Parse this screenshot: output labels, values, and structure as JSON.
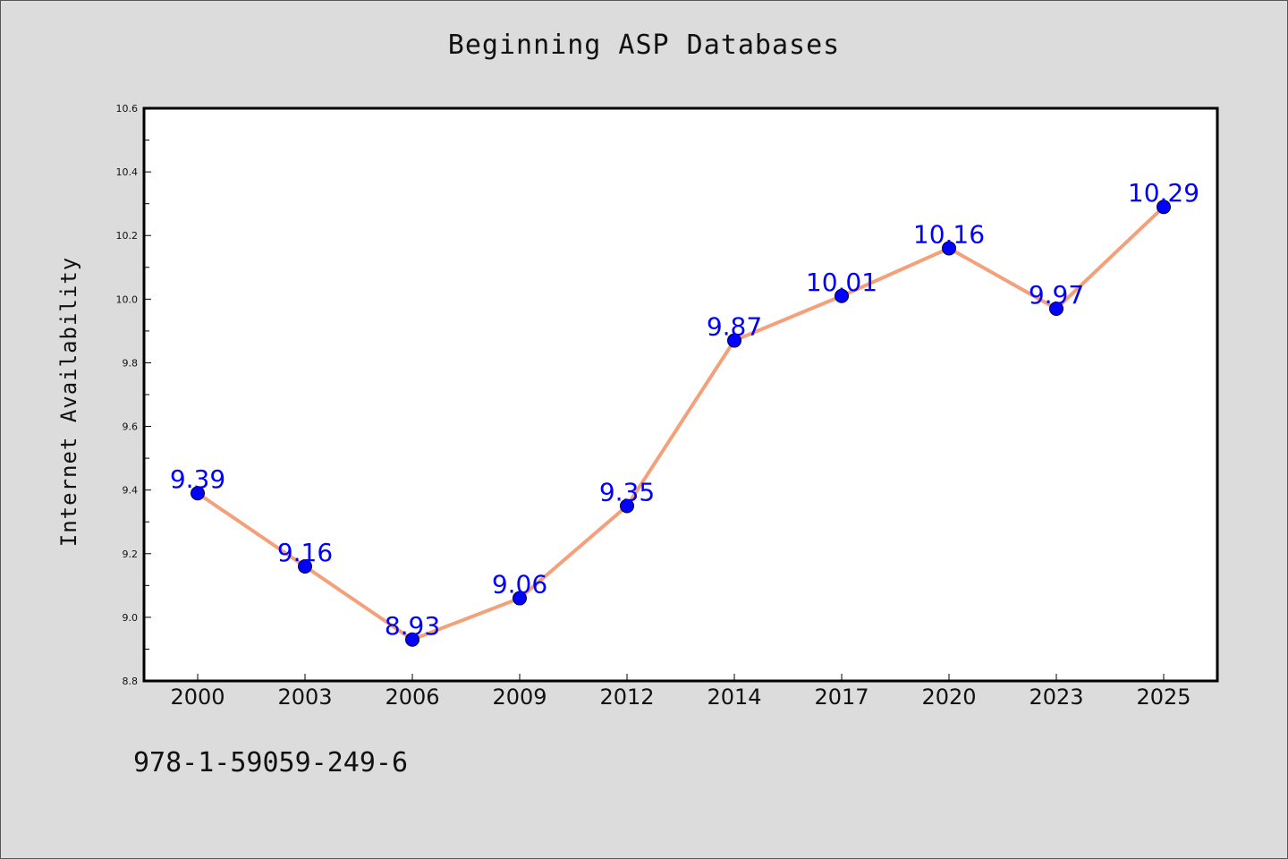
{
  "chart_data": {
    "type": "line",
    "title": "Beginning ASP Databases",
    "xlabel": "",
    "ylabel": "Internet Availability",
    "categories": [
      "2000",
      "2003",
      "2006",
      "2009",
      "2012",
      "2014",
      "2017",
      "2020",
      "2023",
      "2025"
    ],
    "series": [
      {
        "values": [
          9.39,
          9.16,
          8.93,
          9.06,
          9.35,
          9.87,
          10.01,
          10.16,
          9.97,
          10.29
        ],
        "labels": [
          "9.39",
          "9.16",
          "8.93",
          "9.06",
          "9.35",
          "9.87",
          "10.01",
          "10.16",
          "9.97",
          "10.29"
        ],
        "line_color": "#f4a07a",
        "marker_color": "#0000ff"
      }
    ],
    "ylim": [
      8.8,
      10.6
    ],
    "yticks": [
      "8.8",
      "9.0",
      "9.2",
      "9.4",
      "9.6",
      "9.8",
      "10.0",
      "10.2",
      "10.4",
      "10.6"
    ],
    "grid": false,
    "legend": "none"
  },
  "footer": {
    "isbn": "978-1-59059-249-6"
  },
  "colors": {
    "background": "#dcdcdc",
    "plot_background": "#ffffff",
    "data_label": "#0000ff"
  }
}
